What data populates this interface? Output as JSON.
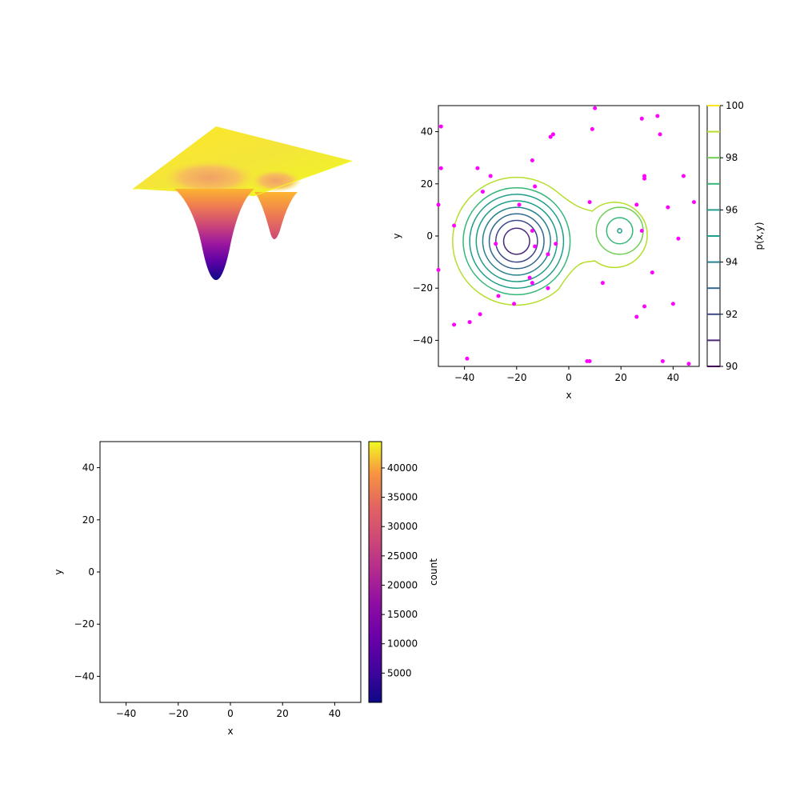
{
  "chart_data": [
    {
      "panel": "surface-3d",
      "type": "surface",
      "colormap": "plasma",
      "surface_z_range": [
        90,
        100
      ],
      "wells": [
        {
          "center": [
            -20,
            -2
          ],
          "min_z": 90
        },
        {
          "center": [
            20,
            2
          ],
          "min_z": 95.8
        }
      ]
    },
    {
      "panel": "contour",
      "type": "contour",
      "colormap": "viridis",
      "xlabel": "x",
      "ylabel": "y",
      "xlim": [
        -50,
        50
      ],
      "ylim": [
        -50,
        50
      ],
      "x_ticks": [
        "−40",
        "−20",
        "0",
        "20",
        "40"
      ],
      "y_ticks": [
        "−40",
        "−20",
        "0",
        "20",
        "40"
      ],
      "colorbar_label": "p(x,y)",
      "colorbar_ticks": [
        "90",
        "92",
        "94",
        "96",
        "98",
        "100"
      ],
      "levels": [
        90,
        91,
        92,
        93,
        94,
        95,
        96,
        97,
        98,
        99,
        100
      ],
      "contour_rings": [
        {
          "center": [
            -20,
            -2
          ],
          "radius": 5,
          "level": 91
        },
        {
          "center": [
            -20,
            -2
          ],
          "radius": 8,
          "level": 92
        },
        {
          "center": [
            -20,
            -2
          ],
          "radius": 10.5,
          "level": 93
        },
        {
          "center": [
            -20,
            -2
          ],
          "radius": 13,
          "level": 94
        },
        {
          "center": [
            -20,
            -2
          ],
          "radius": 15.5,
          "level": 95
        },
        {
          "center": [
            -20,
            -2
          ],
          "radius": 18,
          "level": 96
        },
        {
          "center": [
            -20,
            -2
          ],
          "radius": 20.5,
          "level": 97
        },
        {
          "center": [
            19.5,
            2
          ],
          "radius": 0.8,
          "level": 96
        },
        {
          "center": [
            19.5,
            2
          ],
          "radius": 5,
          "level": 97
        },
        {
          "center": [
            19.5,
            2
          ],
          "radius": 9,
          "level": 98
        }
      ],
      "outer_contour_level": 99,
      "scatter_color": "#ff00ff",
      "scatter_points": [
        [
          10,
          49
        ],
        [
          34,
          46
        ],
        [
          28,
          45
        ],
        [
          -49,
          42
        ],
        [
          9,
          41
        ],
        [
          -6,
          39
        ],
        [
          35,
          39
        ],
        [
          -7,
          38
        ],
        [
          -14,
          29
        ],
        [
          -49,
          26
        ],
        [
          -35,
          26
        ],
        [
          -30,
          23
        ],
        [
          44,
          23
        ],
        [
          29,
          23
        ],
        [
          29,
          22
        ],
        [
          -33,
          17
        ],
        [
          -13,
          19
        ],
        [
          8,
          13
        ],
        [
          48,
          13
        ],
        [
          -50,
          12
        ],
        [
          -19,
          12
        ],
        [
          26,
          12
        ],
        [
          38,
          11
        ],
        [
          -44,
          4
        ],
        [
          -14,
          2
        ],
        [
          28,
          2
        ],
        [
          42,
          -1
        ],
        [
          -28,
          -3
        ],
        [
          -5,
          -3
        ],
        [
          -13,
          -4
        ],
        [
          -8,
          -7
        ],
        [
          -50,
          -13
        ],
        [
          32,
          -14
        ],
        [
          -15,
          -16
        ],
        [
          -14,
          -18
        ],
        [
          13,
          -18
        ],
        [
          -8,
          -20
        ],
        [
          -27,
          -23
        ],
        [
          -21,
          -26
        ],
        [
          40,
          -26
        ],
        [
          29,
          -27
        ],
        [
          -34,
          -30
        ],
        [
          26,
          -31
        ],
        [
          -38,
          -33
        ],
        [
          -44,
          -34
        ],
        [
          -39,
          -47
        ],
        [
          8,
          -48
        ],
        [
          7,
          -48
        ],
        [
          36,
          -48
        ],
        [
          46,
          -49
        ]
      ]
    },
    {
      "panel": "histogram2d",
      "type": "heatmap",
      "colormap": "plasma",
      "xlabel": "x",
      "ylabel": "y",
      "xlim": [
        -50,
        50
      ],
      "ylim": [
        -50,
        50
      ],
      "x_ticks": [
        "−40",
        "−20",
        "0",
        "20",
        "40"
      ],
      "y_ticks": [
        "−40",
        "−20",
        "0",
        "20",
        "40"
      ],
      "colorbar_label": "count",
      "colorbar_range": [
        0,
        44500
      ],
      "colorbar_ticks": [
        "5000",
        "10000",
        "15000",
        "20000",
        "25000",
        "30000",
        "35000",
        "40000"
      ]
    }
  ]
}
